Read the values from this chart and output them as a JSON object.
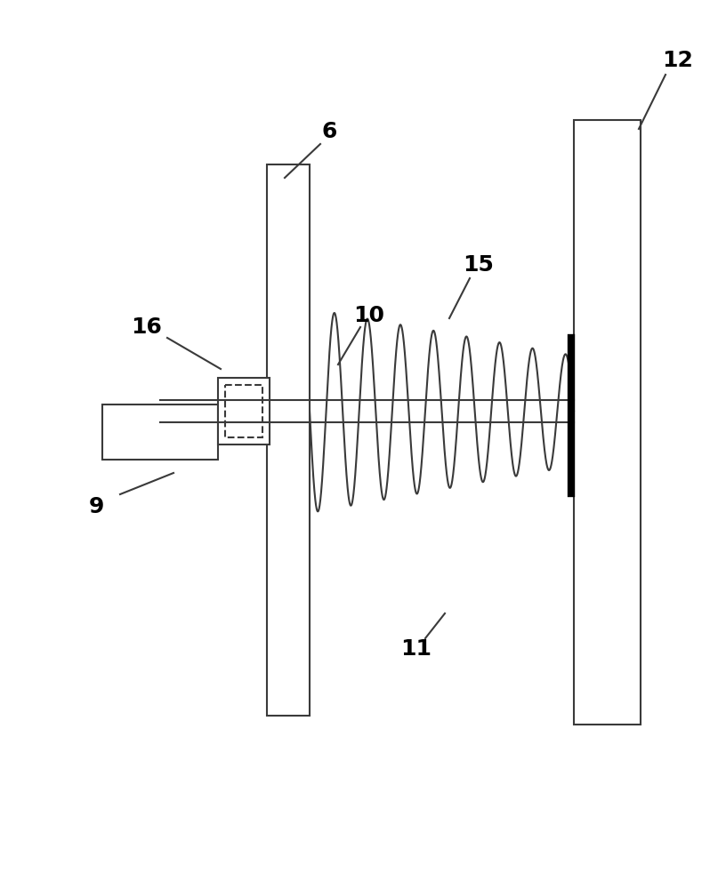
{
  "bg_color": "#ffffff",
  "line_color": "#3a3a3a",
  "fig_width": 8.16,
  "fig_height": 10.0,
  "dpi": 100
}
